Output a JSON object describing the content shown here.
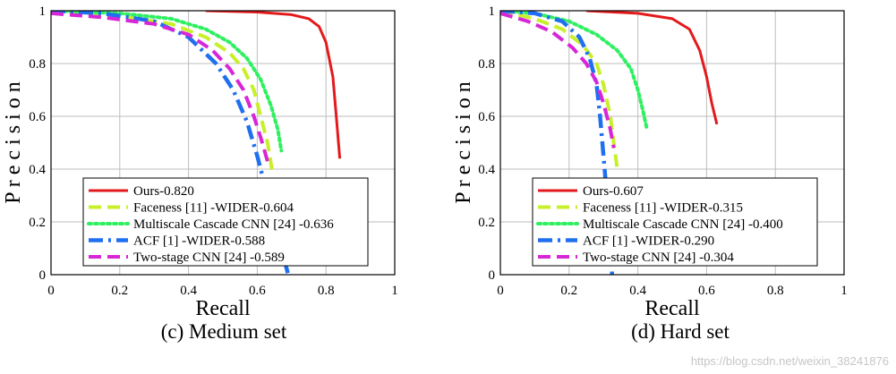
{
  "watermark": "https://blog.csdn.net/weixin_38241876",
  "chart_data": [
    {
      "type": "line",
      "caption": "(c) Medium set",
      "xlabel": "Recall",
      "ylabel": "P r e c i s i o n",
      "xlim": [
        0,
        1
      ],
      "ylim": [
        0,
        1
      ],
      "xticks": [
        "0",
        "0.2",
        "0.4",
        "0.6",
        "0.8",
        "1"
      ],
      "yticks": [
        "0",
        "0.2",
        "0.4",
        "0.6",
        "0.8",
        "1"
      ],
      "grid": true,
      "legend_position": "bottom-left",
      "series": [
        {
          "name": "Ours-0.820",
          "color": "#e31a1c",
          "style": "solid",
          "points": [
            [
              0.45,
              1.0
            ],
            [
              0.6,
              0.995
            ],
            [
              0.7,
              0.985
            ],
            [
              0.75,
              0.97
            ],
            [
              0.78,
              0.94
            ],
            [
              0.8,
              0.88
            ],
            [
              0.82,
              0.75
            ],
            [
              0.83,
              0.6
            ],
            [
              0.84,
              0.44
            ]
          ]
        },
        {
          "name": "Faceness [11] -WIDER-0.604",
          "color": "#c8f02a",
          "style": "dashed",
          "points": [
            [
              0,
              1.0
            ],
            [
              0.2,
              0.98
            ],
            [
              0.35,
              0.95
            ],
            [
              0.45,
              0.9
            ],
            [
              0.52,
              0.84
            ],
            [
              0.56,
              0.78
            ],
            [
              0.59,
              0.7
            ],
            [
              0.61,
              0.6
            ],
            [
              0.63,
              0.5
            ],
            [
              0.645,
              0.38
            ]
          ]
        },
        {
          "name": "Multiscale Cascade CNN [24] -0.636",
          "color": "#2ef060",
          "style": "dotted",
          "points": [
            [
              0,
              1.0
            ],
            [
              0.2,
              0.99
            ],
            [
              0.35,
              0.97
            ],
            [
              0.45,
              0.93
            ],
            [
              0.52,
              0.88
            ],
            [
              0.57,
              0.82
            ],
            [
              0.61,
              0.74
            ],
            [
              0.64,
              0.64
            ],
            [
              0.66,
              0.55
            ],
            [
              0.67,
              0.47
            ]
          ]
        },
        {
          "name": "ACF [1] -WIDER-0.588",
          "color": "#1f6ff0",
          "style": "dashdot",
          "points": [
            [
              0,
              1.0
            ],
            [
              0.15,
              0.99
            ],
            [
              0.3,
              0.96
            ],
            [
              0.4,
              0.9
            ],
            [
              0.48,
              0.8
            ],
            [
              0.53,
              0.7
            ],
            [
              0.57,
              0.58
            ],
            [
              0.6,
              0.45
            ],
            [
              0.63,
              0.3
            ],
            [
              0.66,
              0.15
            ],
            [
              0.69,
              0.0
            ]
          ]
        },
        {
          "name": "Two-stage CNN [24] -0.589",
          "color": "#d726d7",
          "style": "dashed",
          "points": [
            [
              0,
              0.99
            ],
            [
              0.15,
              0.975
            ],
            [
              0.3,
              0.95
            ],
            [
              0.4,
              0.91
            ],
            [
              0.47,
              0.85
            ],
            [
              0.52,
              0.78
            ],
            [
              0.56,
              0.7
            ],
            [
              0.59,
              0.6
            ],
            [
              0.61,
              0.52
            ],
            [
              0.63,
              0.43
            ]
          ]
        }
      ]
    },
    {
      "type": "line",
      "caption": "(d) Hard set",
      "xlabel": "Recall",
      "ylabel": "P r e c i s i o n",
      "xlim": [
        0,
        1
      ],
      "ylim": [
        0,
        1
      ],
      "xticks": [
        "0",
        "0.2",
        "0.4",
        "0.6",
        "0.8",
        "1"
      ],
      "yticks": [
        "0",
        "0.2",
        "0.4",
        "0.6",
        "0.8",
        "1"
      ],
      "grid": true,
      "legend_position": "bottom-left",
      "series": [
        {
          "name": "Ours-0.607",
          "color": "#e31a1c",
          "style": "solid",
          "points": [
            [
              0.25,
              1.0
            ],
            [
              0.4,
              0.99
            ],
            [
              0.5,
              0.97
            ],
            [
              0.55,
              0.93
            ],
            [
              0.58,
              0.85
            ],
            [
              0.6,
              0.75
            ],
            [
              0.615,
              0.65
            ],
            [
              0.63,
              0.57
            ]
          ]
        },
        {
          "name": "Faceness [11] -WIDER-0.315",
          "color": "#c8f02a",
          "style": "dashed",
          "points": [
            [
              0,
              1.0
            ],
            [
              0.1,
              0.97
            ],
            [
              0.18,
              0.93
            ],
            [
              0.24,
              0.87
            ],
            [
              0.28,
              0.8
            ],
            [
              0.3,
              0.72
            ],
            [
              0.32,
              0.6
            ],
            [
              0.33,
              0.5
            ],
            [
              0.34,
              0.4
            ]
          ]
        },
        {
          "name": "Multiscale Cascade CNN [24] -0.400",
          "color": "#2ef060",
          "style": "dotted",
          "points": [
            [
              0,
              1.0
            ],
            [
              0.1,
              0.99
            ],
            [
              0.2,
              0.96
            ],
            [
              0.28,
              0.91
            ],
            [
              0.34,
              0.85
            ],
            [
              0.38,
              0.78
            ],
            [
              0.4,
              0.7
            ],
            [
              0.415,
              0.62
            ],
            [
              0.425,
              0.56
            ]
          ]
        },
        {
          "name": "ACF [1] -WIDER-0.290",
          "color": "#1f6ff0",
          "style": "dashdot",
          "points": [
            [
              0,
              1.0
            ],
            [
              0.1,
              0.99
            ],
            [
              0.18,
              0.96
            ],
            [
              0.23,
              0.9
            ],
            [
              0.26,
              0.82
            ],
            [
              0.28,
              0.72
            ],
            [
              0.29,
              0.6
            ],
            [
              0.3,
              0.45
            ],
            [
              0.31,
              0.3
            ],
            [
              0.32,
              0.15
            ],
            [
              0.325,
              0.0
            ]
          ]
        },
        {
          "name": "Two-stage CNN [24] -0.304",
          "color": "#d726d7",
          "style": "dashed",
          "points": [
            [
              0,
              0.99
            ],
            [
              0.08,
              0.96
            ],
            [
              0.15,
              0.92
            ],
            [
              0.21,
              0.86
            ],
            [
              0.25,
              0.8
            ],
            [
              0.28,
              0.73
            ],
            [
              0.3,
              0.65
            ],
            [
              0.32,
              0.55
            ],
            [
              0.33,
              0.48
            ]
          ]
        }
      ]
    }
  ]
}
